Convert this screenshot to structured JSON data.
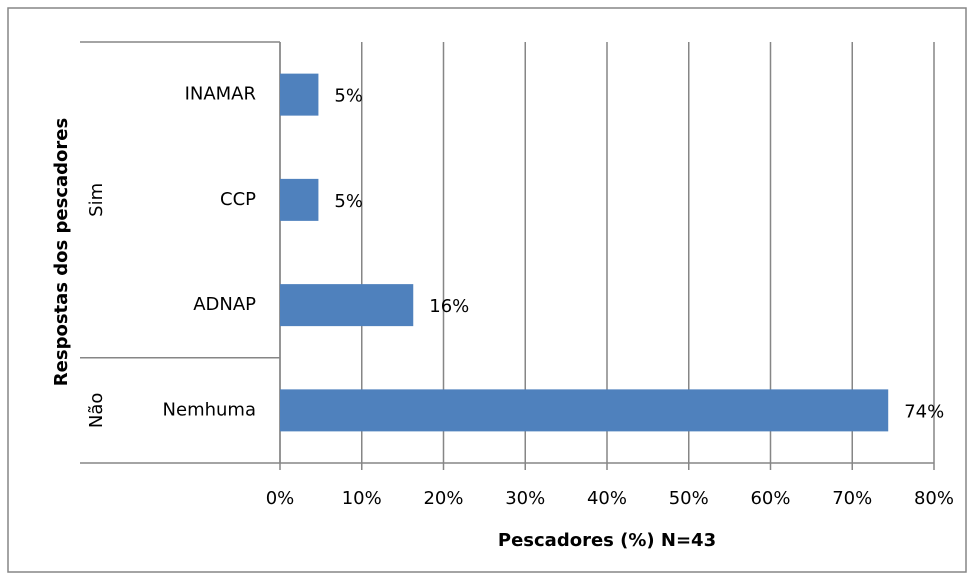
{
  "chart_data": {
    "type": "bar",
    "orientation": "horizontal",
    "x_label": "Pescadores (%) N=43",
    "y_label": "Respostas dos pescadores",
    "color": "#4f81bd",
    "groups": [
      {
        "name": "Sim",
        "categories": [
          "INAMAR",
          "CCP",
          "ADNAP"
        ],
        "values": [
          4.7,
          4.7,
          16.3
        ],
        "value_labels": [
          "5%",
          "5%",
          "16%"
        ]
      },
      {
        "name": "Não",
        "categories": [
          "Nemhuma"
        ],
        "values": [
          74.4
        ],
        "value_labels": [
          "74%"
        ]
      }
    ],
    "xlim": [
      0,
      80
    ],
    "xticks": [
      {
        "value": 0,
        "label": "0%"
      },
      {
        "value": 10,
        "label": "10%"
      },
      {
        "value": 20,
        "label": "20%"
      },
      {
        "value": 30,
        "label": "30%"
      },
      {
        "value": 40,
        "label": "40%"
      },
      {
        "value": 50,
        "label": "50%"
      },
      {
        "value": 60,
        "label": "60%"
      },
      {
        "value": 70,
        "label": "70%"
      },
      {
        "value": 80,
        "label": "80%"
      }
    ],
    "grid": true
  }
}
